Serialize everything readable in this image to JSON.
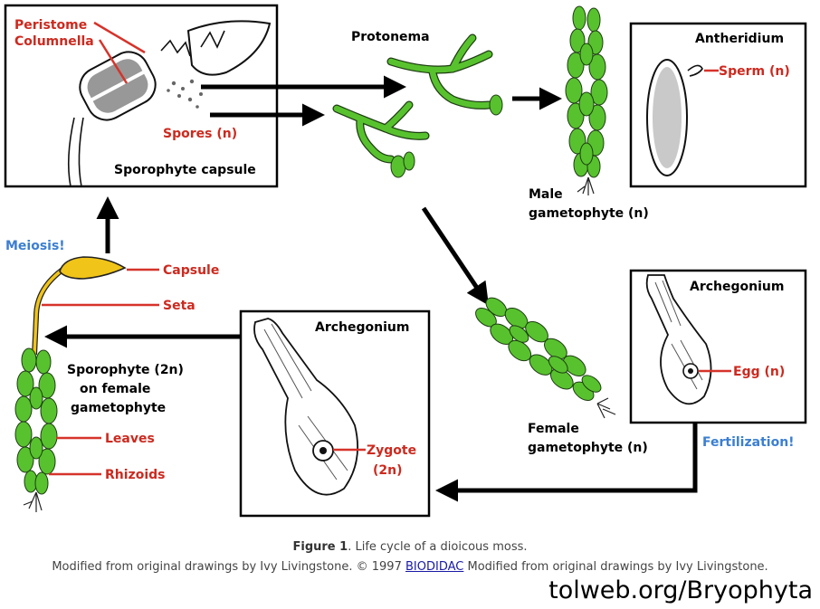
{
  "labels": {
    "peristome": "Peristome",
    "columnella": "Columnella",
    "spores": "Spores (n)",
    "sporophyte_capsule": "Sporophyte capsule",
    "protonema": "Protonema",
    "antheridium": "Antheridium",
    "sperm": "Sperm (n)",
    "male_gametophyte_1": "Male",
    "male_gametophyte_2": "gametophyte (n)",
    "meiosis": "Meiosis!",
    "capsule": "Capsule",
    "seta": "Seta",
    "sporophyte_1": "Sporophyte (2n)",
    "sporophyte_2": "on female",
    "sporophyte_3": "gametophyte",
    "leaves": "Leaves",
    "rhizoids": "Rhizoids",
    "archegonium_center": "Archegonium",
    "zygote_1": "Zygote",
    "zygote_2": "(2n)",
    "archegonium_right": "Archegonium",
    "egg": "Egg (n)",
    "fertilization": "Fertilization!",
    "female_gametophyte_1": "Female",
    "female_gametophyte_2": "gametophyte (n)"
  },
  "caption": {
    "figure_label": "Figure 1",
    "figure_text": ". Life cycle of a dioicous moss.",
    "credit_part1": "Modified from original drawings by Ivy Livingstone. © 1997 ",
    "credit_link": "BIODIDAC",
    "credit_part2": " Modified from original drawings by Ivy Livingstone."
  },
  "source": "tolweb.org/Bryophyta",
  "colors": {
    "label_red": "#cc2a1f",
    "label_blue": "#3b7fd1",
    "plant_green": "#58c22e",
    "seta_yellow": "#f0c419"
  }
}
